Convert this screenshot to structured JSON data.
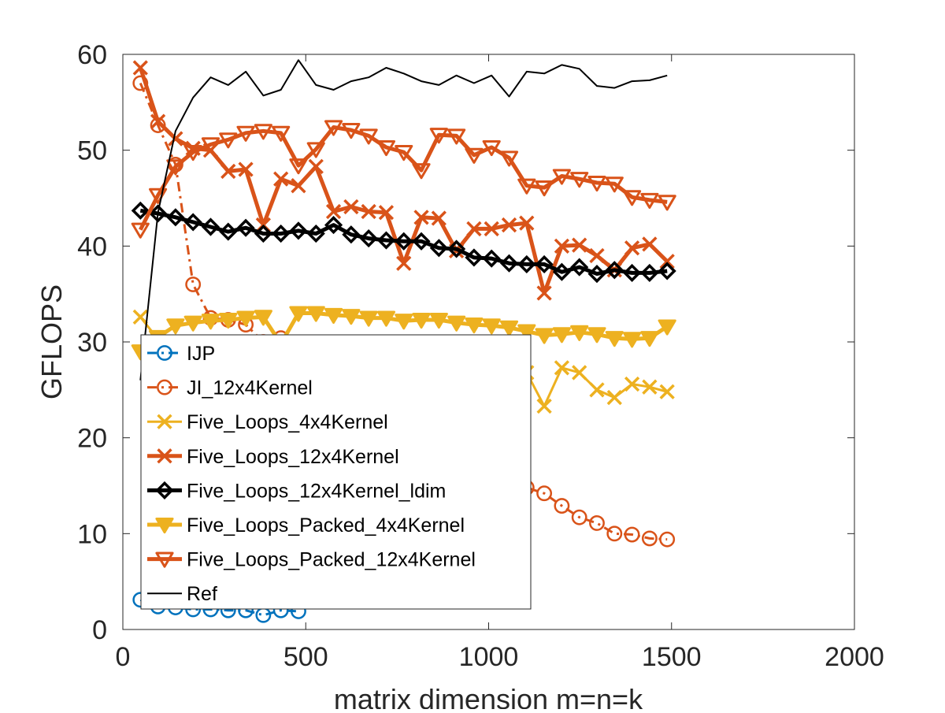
{
  "chart_data": {
    "type": "line",
    "title": "",
    "xlabel": "matrix dimension m=n=k",
    "ylabel": "GFLOPS",
    "xlim": [
      0,
      2000
    ],
    "ylim": [
      0,
      60
    ],
    "xticks": [
      0,
      500,
      1000,
      1500,
      2000
    ],
    "yticks": [
      0,
      10,
      20,
      30,
      40,
      50,
      60
    ],
    "grid": false,
    "legend_position": "center-left",
    "series": [
      {
        "name": "IJP",
        "color": "#0072BD",
        "marker": "circle",
        "dashed": true,
        "x": [
          48,
          96,
          144,
          192,
          240,
          288,
          336,
          384,
          432,
          480
        ],
        "y": [
          3.1,
          2.4,
          2.3,
          2.1,
          2.1,
          2.0,
          2.0,
          1.5,
          2.0,
          1.9
        ]
      },
      {
        "name": "JI_12x4Kernel",
        "color": "#D95319",
        "marker": "circle",
        "dashed": true,
        "x": [
          48,
          96,
          144,
          192,
          240,
          288,
          336,
          384,
          432,
          1104,
          1152,
          1200,
          1248,
          1296,
          1344,
          1392,
          1440,
          1488
        ],
        "y": [
          57.0,
          52.6,
          48.5,
          36.0,
          32.5,
          32.3,
          31.8,
          30.0,
          30.4,
          14.8,
          14.2,
          12.9,
          11.7,
          11.1,
          10.0,
          9.9,
          9.5,
          9.4
        ]
      },
      {
        "name": "Five_Loops_4x4Kernel",
        "color": "#EDB120",
        "marker": "x",
        "dashed": false,
        "x": [
          48,
          96,
          1104,
          1152,
          1200,
          1248,
          1296,
          1344,
          1392,
          1440,
          1488
        ],
        "y": [
          32.6,
          30.3,
          26.8,
          23.3,
          27.3,
          26.8,
          25.0,
          24.2,
          25.6,
          25.3,
          24.8
        ]
      },
      {
        "name": "Five_Loops_12x4Kernel",
        "color": "#D95319",
        "marker": "x",
        "dashed": false,
        "x": [
          48,
          96,
          144,
          192,
          240,
          288,
          336,
          384,
          432,
          480,
          528,
          576,
          624,
          672,
          720,
          768,
          816,
          864,
          912,
          960,
          1008,
          1056,
          1104,
          1152,
          1200,
          1248,
          1296,
          1344,
          1392,
          1440,
          1488
        ],
        "y": [
          58.6,
          53.0,
          51.2,
          50.2,
          50.0,
          47.8,
          48.0,
          42.2,
          47.0,
          46.3,
          48.3,
          43.6,
          44.1,
          43.6,
          43.5,
          38.2,
          43.0,
          42.9,
          39.5,
          41.8,
          41.8,
          42.2,
          42.4,
          35.1,
          40.0,
          40.1,
          39.0,
          37.5,
          39.8,
          40.2,
          38.4
        ]
      },
      {
        "name": "Five_Loops_12x4Kernel_ldim",
        "color": "#000000",
        "marker": "diamond",
        "dashed": false,
        "x": [
          48,
          96,
          144,
          192,
          240,
          288,
          336,
          384,
          432,
          480,
          528,
          576,
          624,
          672,
          720,
          768,
          816,
          864,
          912,
          960,
          1008,
          1056,
          1104,
          1152,
          1200,
          1248,
          1296,
          1344,
          1392,
          1440,
          1488
        ],
        "y": [
          43.7,
          43.4,
          43.0,
          42.5,
          42.0,
          41.5,
          41.9,
          41.3,
          41.3,
          41.6,
          41.3,
          42.2,
          41.2,
          40.8,
          40.6,
          40.5,
          40.5,
          39.8,
          39.7,
          38.8,
          38.7,
          38.2,
          38.1,
          38.1,
          37.3,
          37.8,
          37.1,
          37.5,
          37.2,
          37.2,
          37.4
        ]
      },
      {
        "name": "Five_Loops_Packed_4x4Kernel",
        "color": "#EDB120",
        "marker": "triangle-down-filled",
        "dashed": false,
        "x": [
          48,
          96,
          144,
          192,
          240,
          288,
          336,
          384,
          432,
          480,
          528,
          576,
          624,
          672,
          720,
          768,
          816,
          864,
          912,
          960,
          1008,
          1056,
          1104,
          1152,
          1200,
          1248,
          1296,
          1344,
          1392,
          1440,
          1488
        ],
        "y": [
          29.0,
          30.5,
          31.7,
          32.0,
          32.2,
          32.3,
          32.5,
          32.6,
          29.8,
          33.0,
          33.0,
          32.8,
          32.7,
          32.5,
          32.5,
          32.2,
          32.3,
          32.3,
          32.0,
          31.8,
          31.7,
          31.5,
          31.1,
          30.7,
          30.8,
          31.0,
          30.8,
          30.4,
          30.3,
          30.4,
          31.6
        ]
      },
      {
        "name": "Five_Loops_Packed_12x4Kernel",
        "color": "#D95319",
        "marker": "triangle-down",
        "dashed": false,
        "x": [
          48,
          96,
          144,
          192,
          240,
          288,
          336,
          384,
          432,
          480,
          528,
          576,
          624,
          672,
          720,
          768,
          816,
          864,
          912,
          960,
          1008,
          1056,
          1104,
          1152,
          1200,
          1248,
          1296,
          1344,
          1392,
          1440,
          1488
        ],
        "y": [
          41.7,
          45.3,
          48.3,
          49.8,
          50.6,
          51.1,
          51.8,
          52.0,
          51.8,
          48.4,
          50.1,
          52.4,
          52.1,
          51.5,
          50.3,
          49.8,
          47.9,
          51.6,
          51.5,
          49.5,
          50.3,
          49.2,
          46.3,
          46.1,
          47.3,
          47.0,
          46.6,
          46.5,
          45.1,
          44.8,
          44.6
        ]
      },
      {
        "name": "Ref",
        "color": "#000000",
        "marker": "none",
        "dashed": false,
        "x": [
          48,
          96,
          144,
          192,
          240,
          288,
          336,
          384,
          432,
          480,
          528,
          576,
          624,
          672,
          720,
          768,
          816,
          864,
          912,
          960,
          1008,
          1056,
          1104,
          1152,
          1200,
          1248,
          1296,
          1344,
          1392,
          1440,
          1488
        ],
        "y": [
          26.0,
          43.5,
          52.0,
          55.5,
          57.6,
          56.8,
          58.2,
          55.7,
          56.3,
          59.4,
          56.8,
          56.3,
          57.2,
          57.6,
          58.6,
          58.0,
          57.2,
          56.8,
          57.8,
          57.0,
          57.8,
          55.6,
          58.2,
          58.0,
          58.9,
          58.5,
          56.7,
          56.5,
          57.2,
          57.3,
          57.8
        ]
      }
    ]
  }
}
